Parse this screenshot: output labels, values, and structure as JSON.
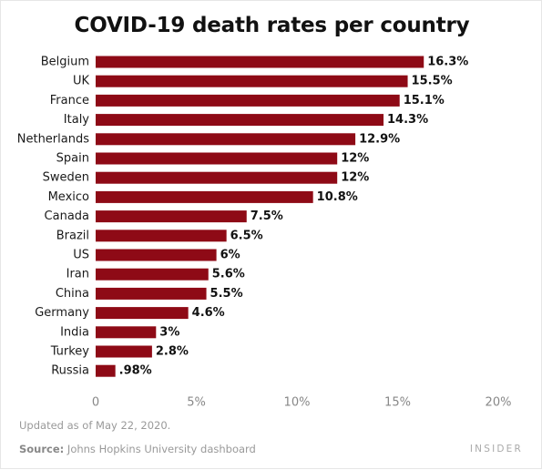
{
  "chart_data": {
    "type": "bar",
    "orientation": "horizontal",
    "title": "COVID-19 death rates per country",
    "categories": [
      "Belgium",
      "UK",
      "France",
      "Italy",
      "Netherlands",
      "Spain",
      "Sweden",
      "Mexico",
      "Canada",
      "Brazil",
      "US",
      "Iran",
      "China",
      "Germany",
      "India",
      "Turkey",
      "Russia"
    ],
    "values": [
      16.3,
      15.5,
      15.1,
      14.3,
      12.9,
      12,
      12,
      10.8,
      7.5,
      6.5,
      6,
      5.6,
      5.5,
      4.6,
      3,
      2.8,
      0.98
    ],
    "value_labels": [
      "16.3%",
      "15.5%",
      "15.1%",
      "14.3%",
      "12.9%",
      "12%",
      "12%",
      "10.8%",
      "7.5%",
      "6.5%",
      "6%",
      "5.6%",
      "5.5%",
      "4.6%",
      "3%",
      "2.8%",
      ".98%"
    ],
    "xlim": [
      0,
      20
    ],
    "x_ticks": [
      0,
      5,
      10,
      15,
      20
    ],
    "x_tick_labels": [
      "0",
      "5%",
      "10%",
      "15%",
      "20%"
    ],
    "xlabel": "",
    "ylabel": "",
    "bar_color": "#8e0a16",
    "grid": false,
    "legend": "none"
  },
  "footer": {
    "note": "Updated as of May 22, 2020.",
    "source_label": "Source:",
    "source_text": "Johns Hopkins University dashboard",
    "brand": "INSIDER"
  }
}
